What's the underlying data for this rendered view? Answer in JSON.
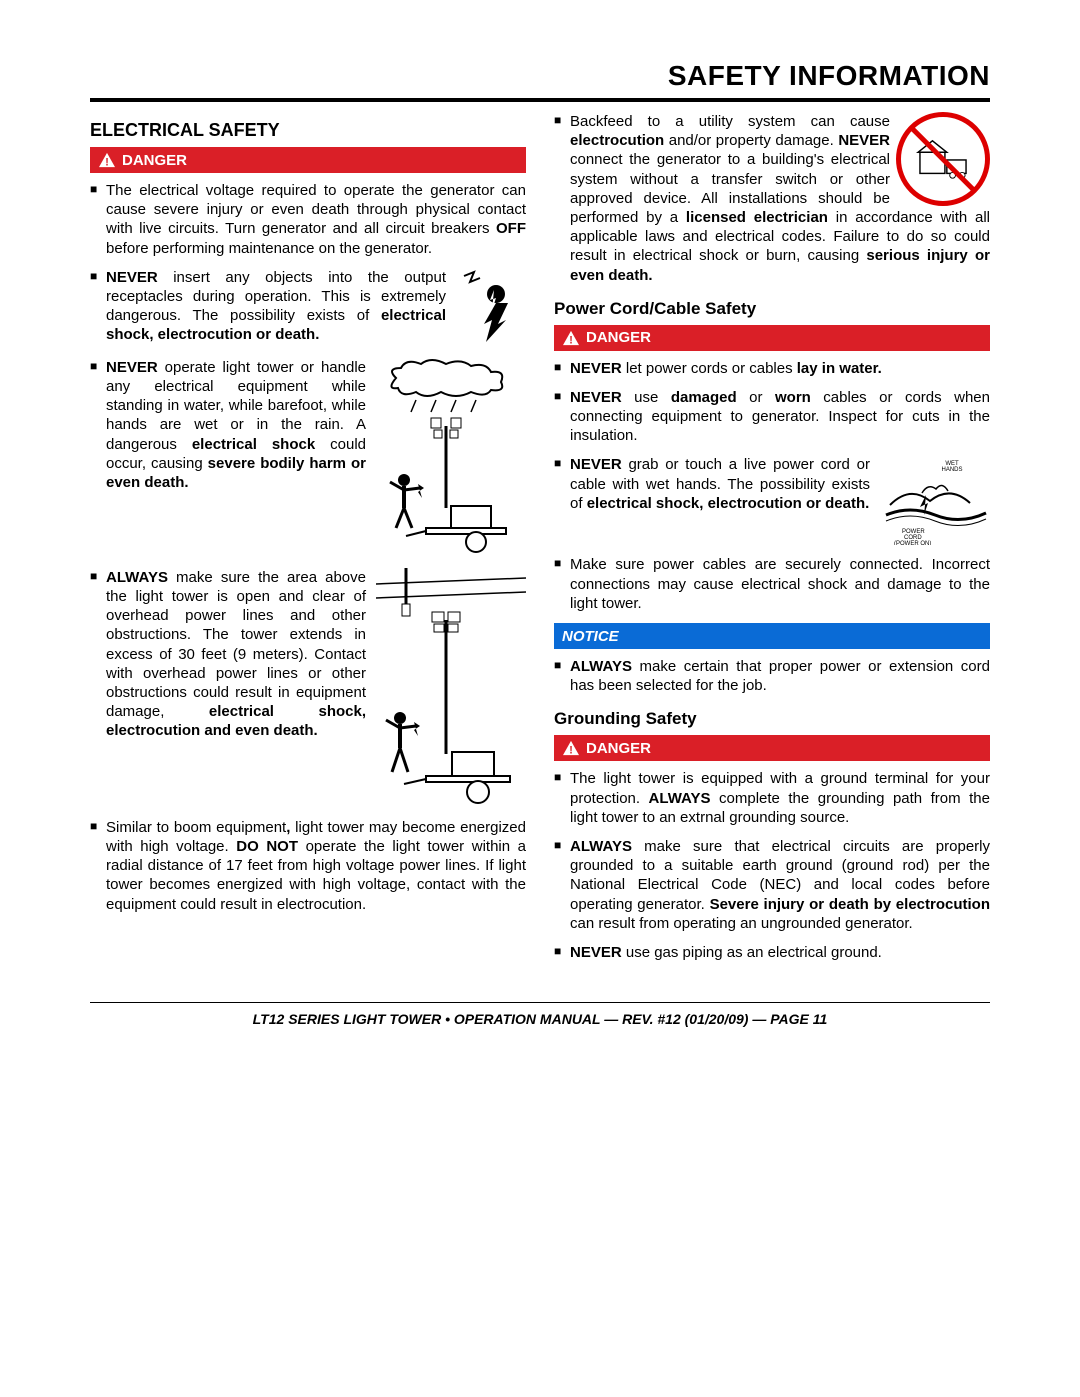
{
  "pageTitle": "SAFETY INFORMATION",
  "footer": "LT12 SERIES LIGHT TOWER • OPERATION MANUAL — REV. #12 (01/20/09) — PAGE 11",
  "dangerLabel": "DANGER",
  "noticeLabel": "NOTICE",
  "left": {
    "heading": "ELECTRICAL SAFETY",
    "items": {
      "p1": "The electrical voltage required to operate the generator can cause severe injury or even death through physical contact with live circuits. Turn generator and all circuit breakers <b>OFF</b> before performing maintenance on the generator.",
      "p2": "<b>NEVER</b> insert any objects into the output receptacles during operation. This is extremely dangerous. The possibility exists of <b>electrical shock, electrocution or death.</b>",
      "p3": "<b>NEVER</b> operate light tower or handle any electrical equipment while standing in water, while barefoot, while hands are wet or in the rain. A dangerous <b>electrical shock</b> could occur, causing <b>severe bodily harm or even death.</b>",
      "p4": "<b>ALWAYS</b> make sure the area above the light tower is open and clear of overhead power lines and other obstructions. The tower extends in excess of 30 feet (9 meters). Contact with overhead power lines or other obstructions could result in equipment damage, <b>electrical shock, electrocution and even death.</b>",
      "p5": "Similar to boom equipment<b>,</b> light tower may become energized with high voltage. <b>DO NOT</b> operate the light tower within a radial distance of 17 feet from  high voltage power lines. If light tower becomes energized with high voltage, contact with the equipment could result in electrocution."
    }
  },
  "right": {
    "backfeed": "Backfeed to a utility system can cause <b>electrocution</b> and/or property damage. <b>NEVER</b> connect the generator to a building's electrical system without a transfer switch or other approved device. All installations should be performed by a <b>licensed electrician</b> in accordance with all applicable laws and electrical codes. Failure to do so could result in electrical shock or burn, causing <b>serious injury or even death.</b>",
    "subPower": "Power Cord/Cable Safety",
    "power": {
      "p1": "<b>NEVER</b> let power cords or cables <b>lay in water.</b>",
      "p2": "<b>NEVER</b> use <b>damaged</b> or <b>worn</b> cables or cords when connecting equipment to generator. Inspect for cuts in the insulation.",
      "p3": "<b>NEVER</b> grab or touch a live power cord or cable with wet hands. The possibility exists of <b>electrical shock, electrocution or death.</b>",
      "p4": "Make sure power cables are securely connected. Incorrect connections may cause electrical shock and damage to the light tower."
    },
    "noticeItems": {
      "p1": "<b>ALWAYS</b> make certain that proper power or extension cord has been selected for the job."
    },
    "subGround": "Grounding Safety",
    "ground": {
      "p1": "The light tower is equipped with a ground terminal for your protection. <b>ALWAYS</b> complete the grounding path from the light tower to an extrnal grounding source.",
      "p2": "<b>ALWAYS</b> make sure that electrical circuits are properly grounded to a suitable earth ground (ground rod) per the National Electrical Code (NEC) and local codes before operating generator. <b>Severe injury or death by electrocution</b> can result from operating an ungrounded generator.",
      "p3": "<b>NEVER</b> use gas piping as an electrical ground."
    }
  },
  "colors": {
    "danger": "#da1f27",
    "notice": "#0a6bd6"
  }
}
